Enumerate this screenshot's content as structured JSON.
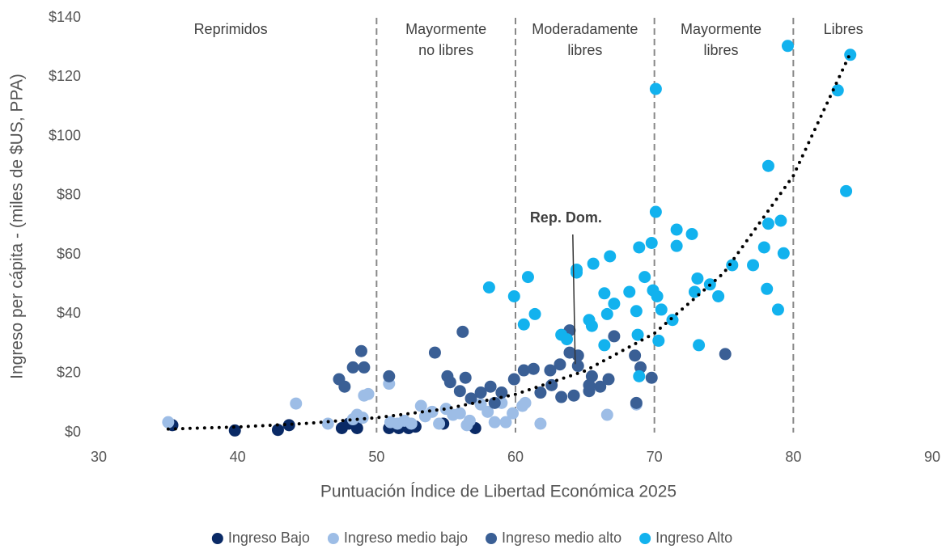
{
  "chart_data": {
    "type": "scatter",
    "xlabel": "Puntuación Índice de Libertad Económica 2025",
    "ylabel": "Ingreso per cápita - (miles de $US, PPA)",
    "xlim": [
      30,
      90
    ],
    "xticks": [
      30,
      40,
      50,
      60,
      70,
      80,
      90
    ],
    "ylim": [
      0,
      140
    ],
    "yticks": [
      {
        "value": 0,
        "label": "$0"
      },
      {
        "value": 20,
        "label": "$20"
      },
      {
        "value": 40,
        "label": "$40"
      },
      {
        "value": 60,
        "label": "$60"
      },
      {
        "value": 80,
        "label": "$80"
      },
      {
        "value": 100,
        "label": "$100"
      },
      {
        "value": 120,
        "label": "$120"
      },
      {
        "value": 140,
        "label": "$140"
      }
    ],
    "grid": false,
    "legend": "bottom",
    "dividers": [
      50,
      60,
      70,
      80
    ],
    "regions": [
      {
        "lines": [
          "Reprimidos"
        ],
        "x": 39.5
      },
      {
        "lines": [
          "Mayormente",
          "no libres"
        ],
        "x": 55
      },
      {
        "lines": [
          "Moderadamente",
          "libres"
        ],
        "x": 65
      },
      {
        "lines": [
          "Mayormente",
          "libres"
        ],
        "x": 74.8
      },
      {
        "lines": [
          "Libres"
        ],
        "x": 83.6
      }
    ],
    "annotation": {
      "text": "Rep. Dom.",
      "x": 64.3,
      "y": 22
    },
    "trend": {
      "x": [
        35,
        40,
        45,
        50,
        55,
        60,
        65,
        70,
        75,
        80,
        84
      ],
      "y": [
        1.2,
        1.9,
        3.1,
        5.0,
        8.0,
        12.9,
        20.8,
        33.5,
        53.9,
        86.7,
        127
      ]
    },
    "series": [
      {
        "name": "Ingreso Bajo",
        "color": "#0a2a66",
        "x": [
          35.3,
          39.8,
          42.9,
          43.7,
          47.5,
          48.6,
          48.0,
          50.9,
          51.6,
          52.3,
          52.8,
          54.8,
          57.1
        ],
        "y": [
          2.5,
          0.7,
          0.9,
          2.5,
          1.5,
          1.5,
          3,
          1.5,
          1.5,
          1.5,
          2,
          3,
          1.5
        ]
      },
      {
        "name": "Ingreso medio bajo",
        "color": "#9dbde6",
        "x": [
          35,
          44.2,
          46.5,
          48.3,
          48.6,
          49.1,
          49.4,
          49,
          50.9,
          51,
          51.5,
          52,
          52.5,
          53.2,
          53.5,
          54,
          54.5,
          55,
          55.5,
          56,
          56.5,
          56.7,
          57.5,
          58,
          58.5,
          59,
          59.3,
          59.8,
          60.5,
          60.7,
          61.8,
          66.6,
          68.7
        ],
        "y": [
          3.5,
          9.8,
          3,
          4.5,
          6,
          12.5,
          13,
          5,
          16.5,
          3.5,
          3,
          4,
          3,
          9,
          5.5,
          7,
          3,
          8,
          6,
          6.5,
          2.5,
          4,
          9.5,
          7,
          3.5,
          10,
          3.5,
          6.5,
          9,
          10,
          3,
          6,
          9.5
        ]
      },
      {
        "name": "Ingreso medio alto",
        "color": "#3a5f95",
        "x": [
          47.3,
          47.7,
          48.3,
          48.9,
          49.1,
          50.9,
          54.2,
          55.1,
          55.3,
          56,
          56.2,
          56.4,
          56.8,
          57.5,
          58.2,
          58.5,
          59,
          59.9,
          60.6,
          61.3,
          61.8,
          62.5,
          62.6,
          63.2,
          63.3,
          63.9,
          63.9,
          64.2,
          64.5,
          64.5,
          65.3,
          65.5,
          66.1,
          66.7,
          67.1,
          68.6,
          68.7,
          69,
          69.8,
          75.1,
          65.3
        ],
        "y": [
          18,
          15.5,
          22,
          27.5,
          22,
          19,
          27,
          19,
          17,
          14,
          34,
          18.5,
          11.5,
          13.5,
          15.5,
          10,
          13.5,
          18,
          21,
          21.5,
          13.5,
          21,
          16,
          23,
          12,
          34.5,
          27,
          12.5,
          26,
          22.5,
          14,
          19,
          15.5,
          18,
          32.5,
          26,
          10,
          22,
          18.5,
          26.5,
          16
        ]
      },
      {
        "name": "Ingreso Alto",
        "color": "#12b2ee",
        "x": [
          58.1,
          59.9,
          60.6,
          60.9,
          61.4,
          63.3,
          63.7,
          64.4,
          64.4,
          65.3,
          65.5,
          65.6,
          66.4,
          66.4,
          66.6,
          66.8,
          67.1,
          68.2,
          68.7,
          68.8,
          68.9,
          68.9,
          69.3,
          69.8,
          69.9,
          70.1,
          70.1,
          70.2,
          70.3,
          70.5,
          71.3,
          71.6,
          71.6,
          72.7,
          72.9,
          73.1,
          73.2,
          74,
          74.6,
          75.6,
          77.1,
          77.9,
          78.1,
          78.2,
          78.2,
          78.9,
          79.1,
          79.3,
          79.6,
          83.2,
          83.8,
          84.1
        ],
        "y": [
          49,
          46,
          36.5,
          52.5,
          40,
          33,
          31.5,
          55,
          54,
          38,
          36,
          57,
          29.5,
          47,
          40,
          59.5,
          43.5,
          47.5,
          41,
          33,
          19,
          62.5,
          52.5,
          64,
          48,
          74.5,
          116,
          46,
          31,
          41.5,
          38,
          68.5,
          63,
          67,
          47.5,
          52,
          29.5,
          50,
          46,
          56.5,
          56.5,
          62.5,
          48.5,
          90,
          70.5,
          41.5,
          71.5,
          60.5,
          130.5,
          115.5,
          81.5,
          127.5
        ]
      }
    ]
  }
}
